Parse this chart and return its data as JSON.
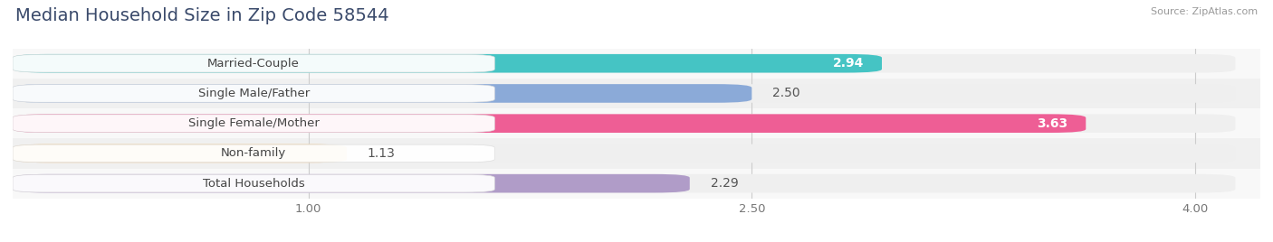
{
  "title": "Median Household Size in Zip Code 58544",
  "source": "Source: ZipAtlas.com",
  "categories": [
    "Married-Couple",
    "Single Male/Father",
    "Single Female/Mother",
    "Non-family",
    "Total Households"
  ],
  "values": [
    2.94,
    2.5,
    3.63,
    1.13,
    2.29
  ],
  "bar_colors": [
    "#45C4C4",
    "#8BAAD8",
    "#EE5E95",
    "#F5C98A",
    "#B09CC8"
  ],
  "value_inside": [
    true,
    false,
    true,
    false,
    false
  ],
  "xlim": [
    0,
    4.22
  ],
  "xmin": 0.0,
  "xticks": [
    1.0,
    2.5,
    4.0
  ],
  "xtick_labels": [
    "1.00",
    "2.50",
    "4.00"
  ],
  "background_color": "#ffffff",
  "bar_bg_color": "#efefef",
  "title_color": "#3a4a6b",
  "title_fontsize": 14,
  "label_fontsize": 9.5,
  "value_fontsize": 10,
  "bar_height": 0.62,
  "row_bg_colors": [
    "#f8f8f8",
    "#f0f0f0"
  ]
}
